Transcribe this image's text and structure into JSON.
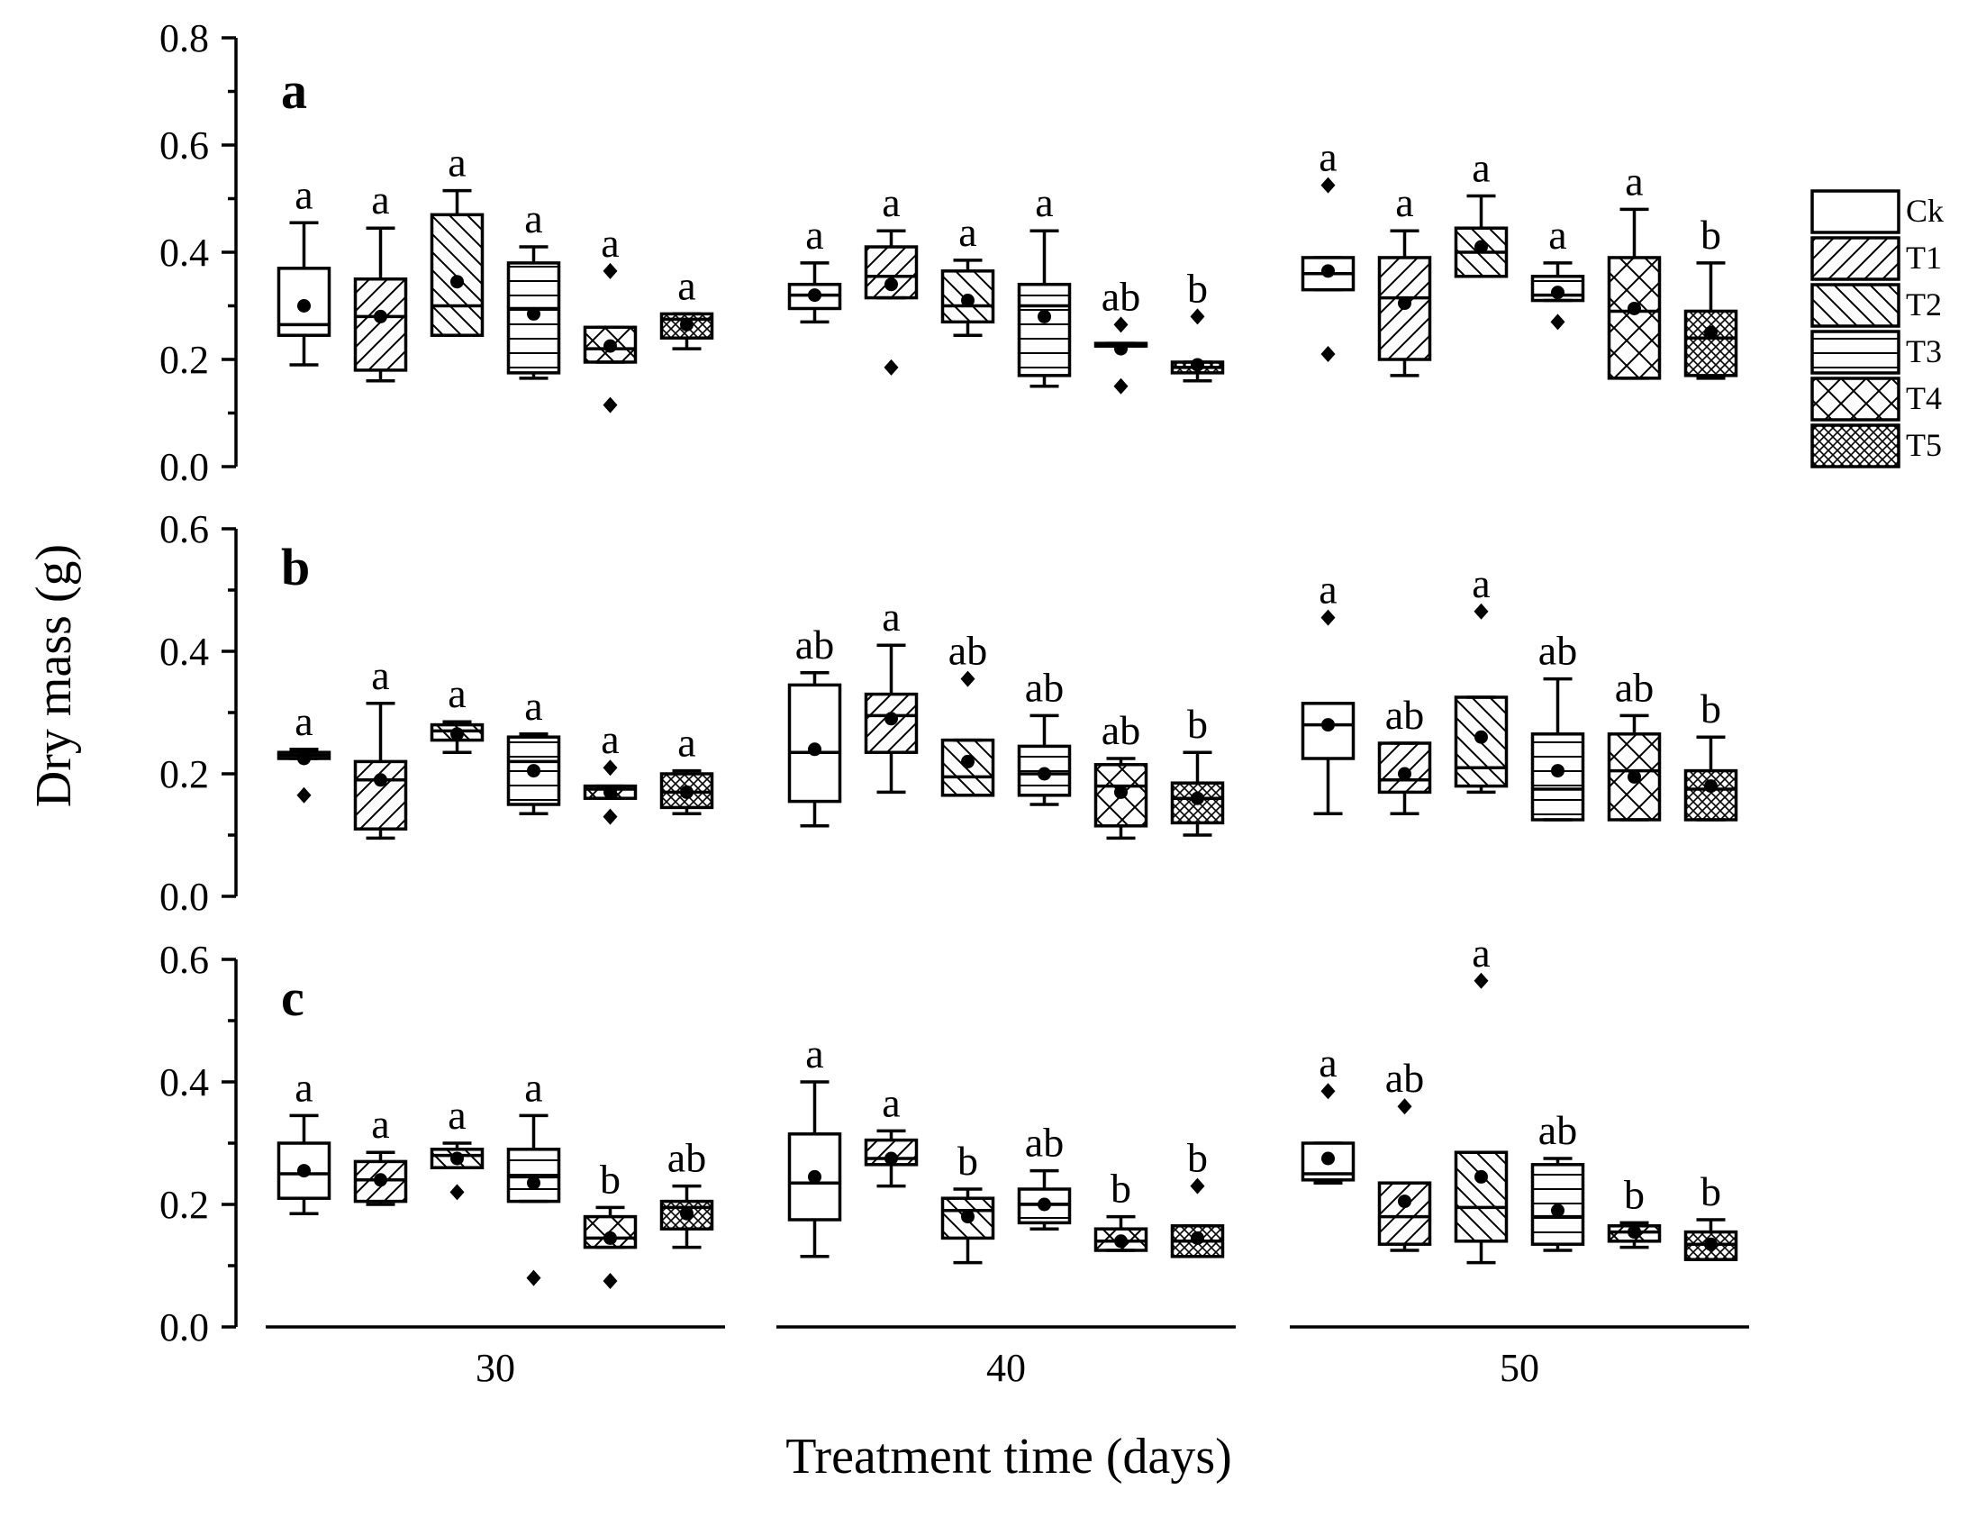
{
  "chart_data": {
    "type": "box",
    "ylabel": "Dry mass (g)",
    "xlabel": "Treatment time (days)",
    "x_groups": [
      "30",
      "40",
      "50"
    ],
    "legend": {
      "position": "right",
      "entries": [
        {
          "name": "Ck",
          "pattern": "none"
        },
        {
          "name": "T1",
          "pattern": "diagonal-forward"
        },
        {
          "name": "T2",
          "pattern": "diagonal-backward"
        },
        {
          "name": "T3",
          "pattern": "horizontal"
        },
        {
          "name": "T4",
          "pattern": "cross"
        },
        {
          "name": "T5",
          "pattern": "dense-cross"
        }
      ]
    },
    "panels": [
      {
        "label": "a",
        "ylim": [
          0,
          0.8
        ],
        "yticks": [
          "0.0",
          "0.2",
          "0.4",
          "0.6",
          "0.8"
        ],
        "groups": [
          {
            "x": "30",
            "boxes": [
              {
                "s": "Ck",
                "min": 0.19,
                "q1": 0.245,
                "med": 0.265,
                "q3": 0.37,
                "max": 0.455,
                "mean": 0.3,
                "out": [],
                "sig": "a"
              },
              {
                "s": "T1",
                "min": 0.16,
                "q1": 0.18,
                "med": 0.28,
                "q3": 0.35,
                "max": 0.445,
                "mean": 0.28,
                "out": [],
                "sig": "a"
              },
              {
                "s": "T2",
                "min": 0.245,
                "q1": 0.245,
                "med": 0.3,
                "q3": 0.47,
                "max": 0.515,
                "mean": 0.345,
                "out": [],
                "sig": "a"
              },
              {
                "s": "T3",
                "min": 0.165,
                "q1": 0.175,
                "med": 0.295,
                "q3": 0.38,
                "max": 0.41,
                "mean": 0.285,
                "out": [],
                "sig": "a"
              },
              {
                "s": "T4",
                "min": 0.195,
                "q1": 0.195,
                "med": 0.22,
                "q3": 0.26,
                "max": 0.26,
                "mean": 0.225,
                "out": [
                  0.365,
                  0.115
                ],
                "sig": "a"
              },
              {
                "s": "T5",
                "min": 0.22,
                "q1": 0.24,
                "med": 0.275,
                "q3": 0.285,
                "max": 0.285,
                "mean": 0.265,
                "out": [],
                "sig": "a"
              }
            ]
          },
          {
            "x": "40",
            "boxes": [
              {
                "s": "Ck",
                "min": 0.27,
                "q1": 0.295,
                "med": 0.32,
                "q3": 0.34,
                "max": 0.38,
                "mean": 0.32,
                "out": [],
                "sig": "a"
              },
              {
                "s": "T1",
                "min": 0.315,
                "q1": 0.315,
                "med": 0.355,
                "q3": 0.41,
                "max": 0.44,
                "mean": 0.34,
                "out": [
                  0.185
                ],
                "sig": "a"
              },
              {
                "s": "T2",
                "min": 0.245,
                "q1": 0.27,
                "med": 0.3,
                "q3": 0.365,
                "max": 0.385,
                "mean": 0.31,
                "out": [],
                "sig": "a"
              },
              {
                "s": "T3",
                "min": 0.15,
                "q1": 0.17,
                "med": 0.3,
                "q3": 0.34,
                "max": 0.44,
                "mean": 0.28,
                "out": [],
                "sig": "a"
              },
              {
                "s": "T4",
                "min": 0.225,
                "q1": 0.225,
                "med": 0.225,
                "q3": 0.23,
                "max": 0.23,
                "mean": 0.22,
                "out": [
                  0.265,
                  0.15
                ],
                "sig": "ab"
              },
              {
                "s": "T5",
                "min": 0.16,
                "q1": 0.175,
                "med": 0.185,
                "q3": 0.195,
                "max": 0.195,
                "mean": 0.19,
                "out": [
                  0.28
                ],
                "sig": "b"
              }
            ]
          },
          {
            "x": "50",
            "boxes": [
              {
                "s": "Ck",
                "min": 0.33,
                "q1": 0.33,
                "med": 0.36,
                "q3": 0.39,
                "max": 0.39,
                "mean": 0.365,
                "out": [
                  0.525,
                  0.21
                ],
                "sig": "a"
              },
              {
                "s": "T1",
                "min": 0.17,
                "q1": 0.2,
                "med": 0.315,
                "q3": 0.39,
                "max": 0.44,
                "mean": 0.305,
                "out": [],
                "sig": "a"
              },
              {
                "s": "T2",
                "min": 0.355,
                "q1": 0.355,
                "med": 0.4,
                "q3": 0.445,
                "max": 0.505,
                "mean": 0.41,
                "out": [],
                "sig": "a"
              },
              {
                "s": "T3",
                "min": 0.31,
                "q1": 0.31,
                "med": 0.32,
                "q3": 0.355,
                "max": 0.38,
                "mean": 0.325,
                "out": [
                  0.27
                ],
                "sig": "a"
              },
              {
                "s": "T4",
                "min": 0.165,
                "q1": 0.165,
                "med": 0.29,
                "q3": 0.39,
                "max": 0.48,
                "mean": 0.295,
                "out": [],
                "sig": "a"
              },
              {
                "s": "T5",
                "min": 0.165,
                "q1": 0.17,
                "med": 0.24,
                "q3": 0.29,
                "max": 0.38,
                "mean": 0.25,
                "out": [],
                "sig": "b"
              }
            ]
          }
        ]
      },
      {
        "label": "b",
        "ylim": [
          0,
          0.6
        ],
        "yticks": [
          "0.0",
          "0.2",
          "0.4",
          "0.6"
        ],
        "groups": [
          {
            "x": "30",
            "boxes": [
              {
                "s": "Ck",
                "min": 0.225,
                "q1": 0.225,
                "med": 0.23,
                "q3": 0.235,
                "max": 0.24,
                "mean": 0.225,
                "out": [
                  0.165
                ],
                "sig": "a"
              },
              {
                "s": "T1",
                "min": 0.095,
                "q1": 0.11,
                "med": 0.19,
                "q3": 0.22,
                "max": 0.315,
                "mean": 0.19,
                "out": [],
                "sig": "a"
              },
              {
                "s": "T2",
                "min": 0.235,
                "q1": 0.255,
                "med": 0.27,
                "q3": 0.28,
                "max": 0.285,
                "mean": 0.265,
                "out": [],
                "sig": "a"
              },
              {
                "s": "T3",
                "min": 0.135,
                "q1": 0.15,
                "med": 0.22,
                "q3": 0.26,
                "max": 0.265,
                "mean": 0.205,
                "out": [],
                "sig": "a"
              },
              {
                "s": "T4",
                "min": 0.16,
                "q1": 0.16,
                "med": 0.175,
                "q3": 0.18,
                "max": 0.18,
                "mean": 0.17,
                "out": [
                  0.21,
                  0.13
                ],
                "sig": "a"
              },
              {
                "s": "T5",
                "min": 0.135,
                "q1": 0.145,
                "med": 0.17,
                "q3": 0.2,
                "max": 0.205,
                "mean": 0.17,
                "out": [],
                "sig": "a"
              }
            ]
          },
          {
            "x": "40",
            "boxes": [
              {
                "s": "Ck",
                "min": 0.115,
                "q1": 0.155,
                "med": 0.235,
                "q3": 0.345,
                "max": 0.365,
                "mean": 0.24,
                "out": [],
                "sig": "ab"
              },
              {
                "s": "T1",
                "min": 0.17,
                "q1": 0.235,
                "med": 0.295,
                "q3": 0.33,
                "max": 0.41,
                "mean": 0.29,
                "out": [],
                "sig": "a"
              },
              {
                "s": "T2",
                "min": 0.165,
                "q1": 0.165,
                "med": 0.195,
                "q3": 0.255,
                "max": 0.255,
                "mean": 0.22,
                "out": [
                  0.355
                ],
                "sig": "ab"
              },
              {
                "s": "T3",
                "min": 0.15,
                "q1": 0.165,
                "med": 0.2,
                "q3": 0.245,
                "max": 0.295,
                "mean": 0.2,
                "out": [],
                "sig": "ab"
              },
              {
                "s": "T4",
                "min": 0.095,
                "q1": 0.115,
                "med": 0.18,
                "q3": 0.215,
                "max": 0.225,
                "mean": 0.17,
                "out": [],
                "sig": "ab"
              },
              {
                "s": "T5",
                "min": 0.1,
                "q1": 0.12,
                "med": 0.16,
                "q3": 0.185,
                "max": 0.235,
                "mean": 0.16,
                "out": [],
                "sig": "b"
              }
            ]
          },
          {
            "x": "50",
            "boxes": [
              {
                "s": "Ck",
                "min": 0.135,
                "q1": 0.225,
                "med": 0.28,
                "q3": 0.315,
                "max": 0.315,
                "mean": 0.28,
                "out": [
                  0.455
                ],
                "sig": "a"
              },
              {
                "s": "T1",
                "min": 0.135,
                "q1": 0.17,
                "med": 0.19,
                "q3": 0.25,
                "max": 0.25,
                "mean": 0.2,
                "out": [],
                "sig": "ab"
              },
              {
                "s": "T2",
                "min": 0.17,
                "q1": 0.18,
                "med": 0.21,
                "q3": 0.325,
                "max": 0.325,
                "mean": 0.26,
                "out": [
                  0.465
                ],
                "sig": "a"
              },
              {
                "s": "T3",
                "min": 0.125,
                "q1": 0.125,
                "med": 0.175,
                "q3": 0.265,
                "max": 0.355,
                "mean": 0.205,
                "out": [],
                "sig": "ab"
              },
              {
                "s": "T4",
                "min": 0.125,
                "q1": 0.125,
                "med": 0.205,
                "q3": 0.265,
                "max": 0.295,
                "mean": 0.195,
                "out": [],
                "sig": "ab"
              },
              {
                "s": "T5",
                "min": 0.125,
                "q1": 0.125,
                "med": 0.175,
                "q3": 0.205,
                "max": 0.26,
                "mean": 0.18,
                "out": [],
                "sig": "b"
              }
            ]
          }
        ]
      },
      {
        "label": "c",
        "ylim": [
          0,
          0.6
        ],
        "yticks": [
          "0.0",
          "0.2",
          "0.4",
          "0.6"
        ],
        "groups": [
          {
            "x": "30",
            "boxes": [
              {
                "s": "Ck",
                "min": 0.185,
                "q1": 0.21,
                "med": 0.25,
                "q3": 0.3,
                "max": 0.345,
                "mean": 0.255,
                "out": [],
                "sig": "a"
              },
              {
                "s": "T1",
                "min": 0.2,
                "q1": 0.205,
                "med": 0.24,
                "q3": 0.27,
                "max": 0.285,
                "mean": 0.24,
                "out": [],
                "sig": "a"
              },
              {
                "s": "T2",
                "min": 0.26,
                "q1": 0.26,
                "med": 0.28,
                "q3": 0.29,
                "max": 0.3,
                "mean": 0.275,
                "out": [
                  0.22
                ],
                "sig": "a"
              },
              {
                "s": "T3",
                "min": 0.205,
                "q1": 0.205,
                "med": 0.245,
                "q3": 0.29,
                "max": 0.345,
                "mean": 0.235,
                "out": [
                  0.08
                ],
                "sig": "a"
              },
              {
                "s": "T4",
                "min": 0.13,
                "q1": 0.13,
                "med": 0.145,
                "q3": 0.18,
                "max": 0.195,
                "mean": 0.145,
                "out": [
                  0.075
                ],
                "sig": "b"
              },
              {
                "s": "T5",
                "min": 0.13,
                "q1": 0.16,
                "med": 0.195,
                "q3": 0.205,
                "max": 0.23,
                "mean": 0.185,
                "out": [],
                "sig": "ab"
              }
            ]
          },
          {
            "x": "40",
            "boxes": [
              {
                "s": "Ck",
                "min": 0.115,
                "q1": 0.175,
                "med": 0.235,
                "q3": 0.315,
                "max": 0.4,
                "mean": 0.245,
                "out": [],
                "sig": "a"
              },
              {
                "s": "T1",
                "min": 0.23,
                "q1": 0.265,
                "med": 0.275,
                "q3": 0.305,
                "max": 0.32,
                "mean": 0.275,
                "out": [],
                "sig": "a"
              },
              {
                "s": "T2",
                "min": 0.105,
                "q1": 0.145,
                "med": 0.19,
                "q3": 0.21,
                "max": 0.225,
                "mean": 0.18,
                "out": [],
                "sig": "b"
              },
              {
                "s": "T3",
                "min": 0.16,
                "q1": 0.17,
                "med": 0.2,
                "q3": 0.225,
                "max": 0.255,
                "mean": 0.2,
                "out": [],
                "sig": "ab"
              },
              {
                "s": "T4",
                "min": 0.125,
                "q1": 0.125,
                "med": 0.14,
                "q3": 0.16,
                "max": 0.18,
                "mean": 0.14,
                "out": [],
                "sig": "b"
              },
              {
                "s": "T5",
                "min": 0.115,
                "q1": 0.115,
                "med": 0.14,
                "q3": 0.165,
                "max": 0.165,
                "mean": 0.145,
                "out": [
                  0.23
                ],
                "sig": "b"
              }
            ]
          },
          {
            "x": "50",
            "boxes": [
              {
                "s": "Ck",
                "min": 0.235,
                "q1": 0.24,
                "med": 0.25,
                "q3": 0.3,
                "max": 0.3,
                "mean": 0.275,
                "out": [
                  0.385
                ],
                "sig": "a"
              },
              {
                "s": "T1",
                "min": 0.125,
                "q1": 0.135,
                "med": 0.18,
                "q3": 0.235,
                "max": 0.235,
                "mean": 0.205,
                "out": [
                  0.36
                ],
                "sig": "ab"
              },
              {
                "s": "T2",
                "min": 0.105,
                "q1": 0.14,
                "med": 0.195,
                "q3": 0.285,
                "max": 0.285,
                "mean": 0.245,
                "out": [
                  0.565
                ],
                "sig": "a"
              },
              {
                "s": "T3",
                "min": 0.125,
                "q1": 0.135,
                "med": 0.18,
                "q3": 0.265,
                "max": 0.275,
                "mean": 0.19,
                "out": [],
                "sig": "ab"
              },
              {
                "s": "T4",
                "min": 0.13,
                "q1": 0.14,
                "med": 0.155,
                "q3": 0.165,
                "max": 0.17,
                "mean": 0.155,
                "out": [],
                "sig": "b"
              },
              {
                "s": "T5",
                "min": 0.11,
                "q1": 0.11,
                "med": 0.135,
                "q3": 0.155,
                "max": 0.175,
                "mean": 0.135,
                "out": [],
                "sig": "b"
              }
            ]
          }
        ]
      }
    ]
  }
}
